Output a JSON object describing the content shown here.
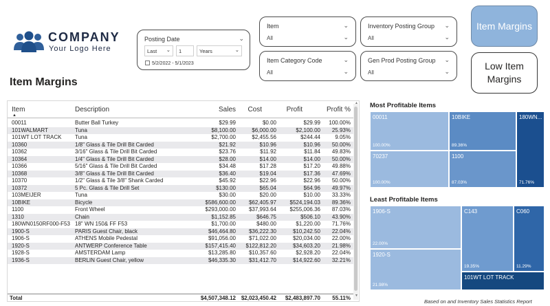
{
  "logo": {
    "company": "COMPANY",
    "tagline": "Your Logo Here"
  },
  "date_slicer": {
    "title": "Posting Date",
    "relative": "Last",
    "count": "1",
    "unit": "Years",
    "range": "5/2/2022 - 5/1/2023"
  },
  "slicers": {
    "item": {
      "title": "Item",
      "value": "All"
    },
    "inventory_posting_group": {
      "title": "Inventory Posting Group",
      "value": "All"
    },
    "item_category_code": {
      "title": "Item Category Code",
      "value": "All"
    },
    "gen_prod_posting_group": {
      "title": "Gen Prod Posting Group",
      "value": "All"
    }
  },
  "buttons": {
    "item_margins": "Item Margins",
    "low_item_margins": "Low Item Margins"
  },
  "page_title": "Item Margins",
  "table": {
    "columns": [
      "Item",
      "Description",
      "Sales",
      "Cost",
      "Profit",
      "Profit %"
    ],
    "rows": [
      [
        "00011",
        "Butter Ball Turkey",
        "$29.99",
        "$0.00",
        "$29.99",
        "100.00%"
      ],
      [
        "101WALMART",
        "Tuna",
        "$8,100.00",
        "$6,000.00",
        "$2,100.00",
        "25.93%"
      ],
      [
        "101WT LOT TRACK",
        "Tuna",
        "$2,700.00",
        "$2,455.56",
        "$244.44",
        "9.05%"
      ],
      [
        "10360",
        "1/8\" Glass & Tile Drill Bit Carded",
        "$21.92",
        "$10.96",
        "$10.96",
        "50.00%"
      ],
      [
        "10362",
        "3/16\" Glass & Tile Drill Bit Carded",
        "$23.76",
        "$11.92",
        "$11.84",
        "49.83%"
      ],
      [
        "10364",
        "1/4\" Glass & Tile Drill Bit Carded",
        "$28.00",
        "$14.00",
        "$14.00",
        "50.00%"
      ],
      [
        "10366",
        "5/16\" Glass & Tile Drill Bit Carded",
        "$34.48",
        "$17.28",
        "$17.20",
        "49.88%"
      ],
      [
        "10368",
        "3/8\" Glass & Tile Drill Bit Carded",
        "$36.40",
        "$19.04",
        "$17.36",
        "47.69%"
      ],
      [
        "10370",
        "1/2\" Glass & Tile 3/8\" Shank Carded",
        "$45.92",
        "$22.96",
        "$22.96",
        "50.00%"
      ],
      [
        "10372",
        "5 Pc. Glass & Tile Drill Set",
        "$130.00",
        "$65.04",
        "$64.96",
        "49.97%"
      ],
      [
        "103MEIJER",
        "Tuna",
        "$30.00",
        "$20.00",
        "$10.00",
        "33.33%"
      ],
      [
        "10BIKE",
        "Bicycle",
        "$586,600.00",
        "$62,405.97",
        "$524,194.03",
        "89.36%"
      ],
      [
        "1100",
        "Front Wheel",
        "$293,000.00",
        "$37,993.64",
        "$255,006.36",
        "87.03%"
      ],
      [
        "1310",
        "Chain",
        "$1,152.85",
        "$646.75",
        "$506.10",
        "43.90%"
      ],
      [
        "180WN0150RF000-F53",
        "18\" WN 150& FF F53",
        "$1,700.00",
        "$480.00",
        "$1,220.00",
        "71.76%"
      ],
      [
        "1900-S",
        "PARIS Guest Chair, black",
        "$46,464.80",
        "$36,222.30",
        "$10,242.50",
        "22.04%"
      ],
      [
        "1906-S",
        "ATHENS Mobile Pedestal",
        "$91,056.00",
        "$71,022.00",
        "$20,034.00",
        "22.00%"
      ],
      [
        "1920-S",
        "ANTWERP Conference Table",
        "$157,415.40",
        "$122,812.20",
        "$34,603.20",
        "21.98%"
      ],
      [
        "1928-S",
        "AMSTERDAM Lamp",
        "$13,285.80",
        "$10,357.60",
        "$2,928.20",
        "22.04%"
      ],
      [
        "1936-S",
        "BERLIN Guest Chair, yellow",
        "$46,335.30",
        "$31,412.70",
        "$14,922.60",
        "32.21%"
      ]
    ],
    "total": [
      "Total",
      "$4,507,348.12",
      "$2,023,450.42",
      "$2,483,897.70",
      "55.11%"
    ]
  },
  "most_profitable": {
    "title": "Most Profitable Items",
    "tiles": [
      {
        "name": "00011",
        "pct": "100.00%",
        "color": "#9bbadf"
      },
      {
        "name": "70237",
        "pct": "100.00%",
        "color": "#9bbadf"
      },
      {
        "name": "10BIKE",
        "pct": "89.36%",
        "color": "#5b8bc4"
      },
      {
        "name": "1100",
        "pct": "87.03%",
        "color": "#6a96cb"
      },
      {
        "name": "180WN...",
        "pct": "71.76%",
        "color": "#1b4f8f"
      }
    ]
  },
  "least_profitable": {
    "title": "Least Profitable Items",
    "tiles": [
      {
        "name": "1906-S",
        "pct": "22.00%",
        "color": "#9bbadf"
      },
      {
        "name": "1920-S",
        "pct": "21.98%",
        "color": "#9bbadf"
      },
      {
        "name": "C143",
        "pct": "19.35%",
        "color": "#6f9bcf"
      },
      {
        "name": "C060",
        "pct": "11.29%",
        "color": "#2f66a8"
      },
      {
        "name": "101WT LOT TRACK",
        "pct": "",
        "color": "#15487f"
      }
    ]
  },
  "footnote": "Based on and Inventory Sales Statistics Report"
}
